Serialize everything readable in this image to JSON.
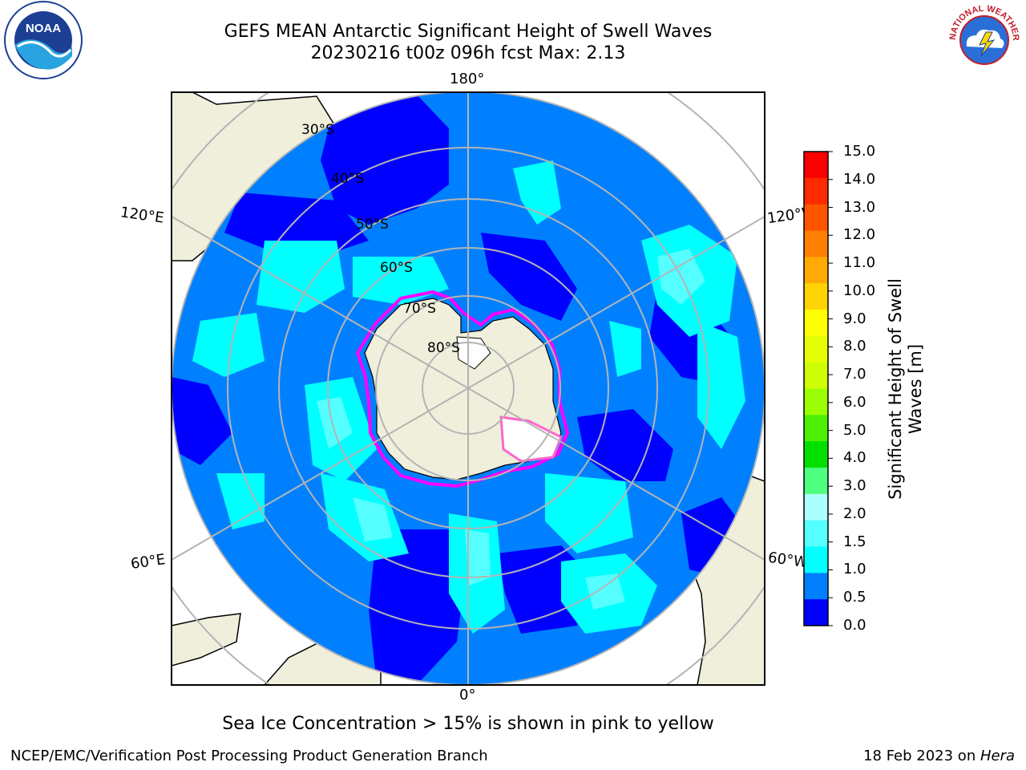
{
  "title": {
    "line1": "GEFS MEAN Antarctic Significant Height of Swell Waves",
    "line2": "20230216 t00z 096h fcst   Max: 2.13"
  },
  "map": {
    "projection": "south-polar-stereographic",
    "lon_labels": {
      "top": "180°",
      "bottom": "0°",
      "left_upper": "120°E",
      "left_lower": "60°E",
      "right_upper": "120°W",
      "right_lower": "60°W"
    },
    "lat_labels": [
      "30°S",
      "40°S",
      "50°S",
      "60°S",
      "70°S",
      "80°S"
    ],
    "colors": {
      "land": "#efefdc",
      "ocean_deep": "#0000ff",
      "ocean_mid": "#0080ff",
      "ocean_light": "#00ffff",
      "grid": "#b4b4b4",
      "sea_ice_edge": "#ff00ff"
    }
  },
  "colorbar": {
    "label": "Significant Height of Swell Waves [m]",
    "ticks": [
      "15.0",
      "14.0",
      "13.0",
      "12.0",
      "11.0",
      "10.0",
      "9.0",
      "8.0",
      "7.0",
      "6.0",
      "5.0",
      "4.0",
      "3.0",
      "2.0",
      "1.5",
      "1.0",
      "0.5",
      "0.0"
    ],
    "colors": [
      "#ff0000",
      "#ff2a00",
      "#ff5500",
      "#ff8000",
      "#ffaa00",
      "#ffd400",
      "#ffff00",
      "#e6ff00",
      "#cdff00",
      "#9bff00",
      "#4ef000",
      "#00e000",
      "#4fff80",
      "#aaffff",
      "#55ffff",
      "#00ffff",
      "#0080ff",
      "#0000ff"
    ]
  },
  "caption": "Sea Ice Concentration > 15% is shown in pink to yellow",
  "footer": {
    "left": "NCEP/EMC/Verification Post Processing Product Generation Branch",
    "right_prefix": "18 Feb 2023 on ",
    "right_host": "Hera"
  },
  "logos": {
    "left": "NOAA",
    "right": "NATIONAL WEATHER SERVICE"
  }
}
